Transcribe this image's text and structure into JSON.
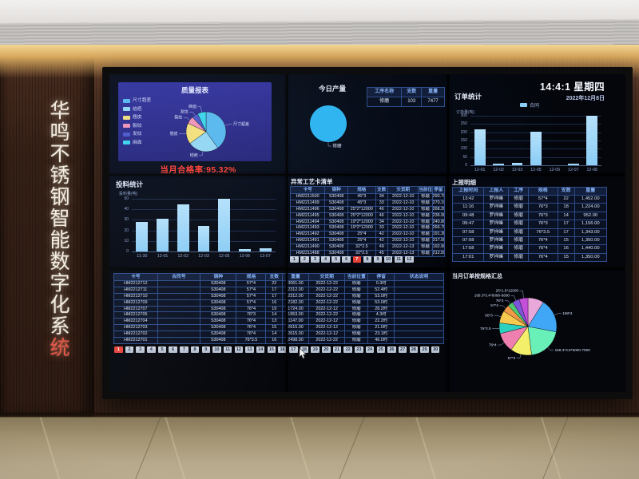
{
  "scene": {
    "brand_vertical_text": "华鸣不锈钢智能数字化系",
    "brand_accent_char": "统",
    "accent_color": "#e05848"
  },
  "clock": {
    "time": "14:4:1",
    "weekday": "星期四",
    "date": "2022年12月8日"
  },
  "quality": {
    "title": "质量报表",
    "summary": "当月合格率:95.32%"
  },
  "production": {
    "title": "今日产量",
    "table": {
      "headers": [
        "工序名称",
        "支数",
        "重量"
      ],
      "widths": [
        44,
        26,
        30
      ],
      "rows": [
        [
          "修磨",
          "103",
          "7477"
        ]
      ]
    }
  },
  "orders": {
    "title": "订单统计",
    "legend": "合同"
  },
  "feed": {
    "title": "投料统计"
  },
  "abnormal": {
    "title": "异常工艺卡清单",
    "table": {
      "headers": [
        "卡号",
        "钢种",
        "规格",
        "支数",
        "交货期",
        "当前位置",
        "停留"
      ],
      "widths": [
        22,
        15,
        18,
        8,
        20,
        9,
        8
      ],
      "rows": [
        [
          "HM2211500",
          "S30408",
          "45*3",
          "34",
          "2022-12-10",
          "修磨",
          "290.7时"
        ],
        [
          "HM2211499",
          "S30408",
          "45*3",
          "33",
          "2022-12-10",
          "修磨",
          "270.1时"
        ],
        [
          "HM2211496",
          "S30408",
          "25*2*12000",
          "46",
          "2022-12-10",
          "修磨",
          "268.2时"
        ],
        [
          "HM2211495",
          "S30408",
          "25*2*12000",
          "46",
          "2022-12-10",
          "修磨",
          "236.9时"
        ],
        [
          "HM2211494",
          "S30408",
          "19*2*12000",
          "34",
          "2022-12-10",
          "修磨",
          "240.8时"
        ],
        [
          "HM2211493",
          "S30408",
          "19*2*12000",
          "33",
          "2022-12-10",
          "修磨",
          "266.7时"
        ],
        [
          "HM2211492",
          "S30408",
          "25*4",
          "42",
          "2022-12-10",
          "修磨",
          "191.3时"
        ],
        [
          "HM2211491",
          "S30408",
          "25*4",
          "42",
          "2022-12-10",
          "修磨",
          "317.0时"
        ],
        [
          "HM2211490",
          "S30408",
          "32*2.5",
          "49",
          "2022-12-13",
          "修磨",
          "192.9时"
        ],
        [
          "HM2211488",
          "S30408",
          "32*2.5",
          "45",
          "2022-12-13",
          "修磨",
          "212.5时"
        ]
      ]
    },
    "pager": {
      "pages": [
        1,
        2,
        3,
        4,
        5,
        6,
        7,
        8,
        9,
        10,
        11,
        12
      ],
      "active": 7
    }
  },
  "reports": {
    "title": "上报明细",
    "table": {
      "headers": [
        "上报时间",
        "上报人",
        "工序",
        "规格",
        "支数",
        "重量"
      ],
      "widths": [
        20,
        16,
        13,
        19,
        11,
        21
      ],
      "rows": [
        [
          "13:42",
          "罗祥峰",
          "修磨",
          "57*4",
          "22",
          "1,452.00"
        ],
        [
          "11:16",
          "罗祥峰",
          "修磨",
          "76*3",
          "18",
          "1,224.00"
        ],
        [
          "09:48",
          "罗祥峰",
          "修磨",
          "76*3",
          "14",
          "952.00"
        ],
        [
          "09:47",
          "罗祥峰",
          "修磨",
          "76*3",
          "17",
          "1,156.00"
        ],
        [
          "07:58",
          "罗祥峰",
          "修磨",
          "76*3.5",
          "17",
          "1,343.00"
        ],
        [
          "07:58",
          "罗祥峰",
          "修磨",
          "76*4",
          "15",
          "1,350.00"
        ],
        [
          "17:58",
          "罗祥峰",
          "修磨",
          "76*4",
          "16",
          "1,440.00"
        ],
        [
          "17:01",
          "罗祥峰",
          "修磨",
          "76*4",
          "15",
          "1,350.00"
        ]
      ]
    }
  },
  "cards": {
    "table": {
      "headers": [
        "卡号",
        "合同号",
        "钢种",
        "规格",
        "支数",
        "重量",
        "交货期",
        "当前位置",
        "停留",
        "状态说明"
      ],
      "widths": [
        13,
        13,
        11,
        9,
        5,
        8,
        11,
        7,
        8,
        15
      ],
      "rows": [
        [
          "HM2212712",
          "",
          "S30408",
          "57*4",
          "22",
          "3061.00",
          "2022-12-22",
          "修磨",
          "0.3时",
          ""
        ],
        [
          "HM2212711",
          "",
          "S30408",
          "57*4",
          "17",
          "2312.00",
          "2022-12-22",
          "修磨",
          "52.4时",
          ""
        ],
        [
          "HM2212710",
          "",
          "S30408",
          "57*4",
          "17",
          "2312.00",
          "2022-12-22",
          "修磨",
          "53.0时",
          ""
        ],
        [
          "HM2212709",
          "",
          "S30408",
          "57*4",
          "16",
          "2182.00",
          "2022-12-22",
          "修磨",
          "53.0时",
          ""
        ],
        [
          "HM2212707",
          "",
          "S30408",
          "76*4",
          "19",
          "1724.00",
          "2022-12-12",
          "修磨",
          "28.2时",
          ""
        ],
        [
          "HM2212705",
          "",
          "S30408",
          "76*3",
          "14",
          "1953.00",
          "2022-12-22",
          "修磨",
          "4.3时",
          ""
        ],
        [
          "HM2212704",
          "",
          "S30408",
          "76*4",
          "13",
          "1147.00",
          "2022-12-12",
          "修磨",
          "22.2时",
          ""
        ],
        [
          "HM2212703",
          "",
          "S30408",
          "76*4",
          "15",
          "2615.00",
          "2022-12-12",
          "修磨",
          "21.0时",
          ""
        ],
        [
          "HM2212702",
          "",
          "S30408",
          "76*4",
          "14",
          "2615.00",
          "2022-12-12",
          "修磨",
          "23.1时",
          ""
        ],
        [
          "HM2212701",
          "",
          "S30408",
          "76*3.5",
          "16",
          "2498.00",
          "2022-12-22",
          "修磨",
          "46.0时",
          ""
        ]
      ]
    },
    "pager": {
      "pages": [
        1,
        2,
        3,
        4,
        5,
        6,
        7,
        8,
        9,
        10,
        11,
        12,
        13,
        14,
        15,
        16,
        17,
        18,
        19,
        20,
        21,
        22,
        23,
        24,
        25,
        26,
        27,
        28,
        29,
        30
      ],
      "active": 1
    }
  },
  "spec": {
    "title": "当月订单按规格汇总"
  },
  "chart_data": [
    {
      "id": "quality-defect-pie",
      "type": "pie",
      "title": "质量报表",
      "slices": [
        {
          "label": "尺寸超差",
          "value": 40,
          "color": "#58b8ee"
        },
        {
          "label": "结疤",
          "value": 25,
          "color": "#93d7f4"
        },
        {
          "label": "翘皮",
          "value": 17,
          "color": "#f3e07c"
        },
        {
          "label": "裂纹",
          "value": 6,
          "color": "#f295b7"
        },
        {
          "label": "发纹",
          "value": 5,
          "color": "#4a58c8"
        },
        {
          "label": "麻面",
          "value": 7,
          "color": "#3cd6ec"
        }
      ]
    },
    {
      "id": "today-production-pie",
      "type": "pie",
      "title": "今日产量",
      "slices": [
        {
          "label": "修磨",
          "value": 100,
          "color": "#2eb4f0"
        }
      ]
    },
    {
      "id": "orders-bar",
      "type": "bar",
      "title": "订单统计",
      "ylabel": "订单量(吨)",
      "legend": [
        "合同"
      ],
      "color": "#8ccdf6",
      "categories": [
        "12-01",
        "12-02",
        "12-03",
        "12-05",
        "12-06",
        "12-07",
        "12-08"
      ],
      "values": [
        218,
        12,
        15,
        205,
        0,
        8,
        300
      ],
      "ylim": [
        0,
        300
      ],
      "ytick": 50
    },
    {
      "id": "feed-bar",
      "type": "bar",
      "title": "投料统计",
      "ylabel": "投料量(吨)",
      "color": "#8ccdf6",
      "categories": [
        "11-30",
        "12-01",
        "12-02",
        "12-03",
        "12-05",
        "12-06",
        "12-07"
      ],
      "values": [
        28,
        31,
        45,
        24,
        50,
        2,
        3
      ],
      "ylim": [
        0,
        50
      ],
      "ytick": 10
    },
    {
      "id": "spec-summary-pie",
      "type": "pie",
      "title": "当月订单按规格汇总",
      "slices": [
        {
          "label": "",
          "value": 9,
          "color": "#e9a8da"
        },
        {
          "label": "168*4",
          "value": 19,
          "color": "#3fa7f5"
        },
        {
          "label": "168.3*3.6*5000-7000",
          "value": 20,
          "color": "#69f0b9"
        },
        {
          "label": "57*3",
          "value": 12,
          "color": "#f4ef6a"
        },
        {
          "label": "76*4",
          "value": 11,
          "color": "#ef7fae"
        },
        {
          "label": "76*3.5",
          "value": 6,
          "color": "#2ad1c0"
        },
        {
          "label": "60*3",
          "value": 7,
          "color": "#f6c94f"
        },
        {
          "label": "57*4",
          "value": 4,
          "color": "#f19a45"
        },
        {
          "label": "76*3",
          "value": 3,
          "color": "#4ecb6e"
        },
        {
          "label": "168.3*3.4*6000-6800",
          "value": 4,
          "color": "#7d55d8"
        },
        {
          "label": "25*1.5*12000",
          "value": 5,
          "color": "#c44fd8"
        }
      ]
    }
  ]
}
